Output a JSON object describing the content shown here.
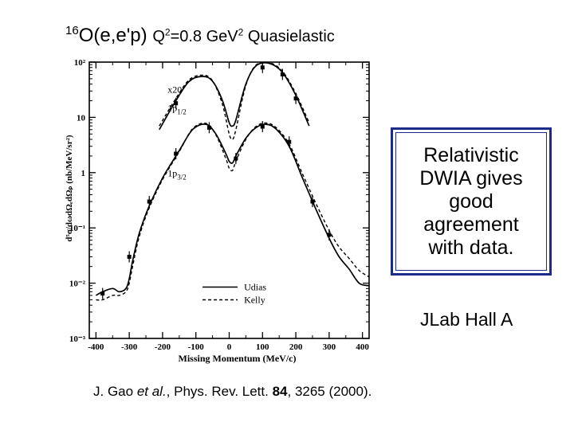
{
  "title": {
    "nucleus_mass": "16",
    "nucleus": "O(e,e'p)",
    "q_label": "Q",
    "q_exp": "2",
    "q_value": "=0.8 GeV",
    "q_unit_exp": "2",
    "q_suffix": " Quasielastic"
  },
  "callout": {
    "text": "Relativistic DWIA gives good agreement with data."
  },
  "lab": "JLab Hall A",
  "reference": {
    "authors": "J. Gao ",
    "etal": "et al.",
    "journal": ", Phys. Rev. Lett. ",
    "volume": "84",
    "pages": ", 3265 (2000)."
  },
  "chart_data": {
    "type": "line",
    "title": "",
    "xlabel": "Missing Momentum (MeV/c)",
    "ylabel": "d⁵σ/dωdΩₑdΩₚ (nb/MeV/sr²)",
    "xlim": [
      -420,
      420
    ],
    "ylim": [
      0.001,
      100
    ],
    "yscale": "log",
    "x_ticks": [
      "-400",
      "-300",
      "-200",
      "-100",
      "0",
      "100",
      "200",
      "300",
      "400"
    ],
    "y_ticks": [
      "10⁻³",
      "10⁻²",
      "10⁻¹",
      "1",
      "10",
      "10²"
    ],
    "y_tick_values": [
      0.001,
      0.01,
      0.1,
      1,
      10,
      100
    ],
    "legend": {
      "position": "bottom-right",
      "entries": [
        {
          "name": "Udias",
          "style": "solid"
        },
        {
          "name": "Kelly",
          "style": "dashed"
        }
      ]
    },
    "annotations": [
      {
        "text": "x20",
        "x": -185,
        "y": 28
      },
      {
        "text": "1p1/2",
        "x": -185,
        "y": 13
      },
      {
        "text": "1p3/2",
        "x": -185,
        "y": 0.85
      }
    ],
    "series": [
      {
        "name": "1p1/2 x20 Udias",
        "style": "solid",
        "x": [
          -210,
          -160,
          -120,
          -80,
          -50,
          -20,
          0,
          10,
          20,
          50,
          80,
          120,
          160,
          200,
          240
        ],
        "y": [
          6,
          20,
          45,
          55,
          45,
          20,
          8,
          7,
          9,
          40,
          85,
          95,
          65,
          25,
          7
        ]
      },
      {
        "name": "1p1/2 x20 Kelly",
        "style": "dashed",
        "x": [
          -210,
          -160,
          -120,
          -80,
          -50,
          -20,
          0,
          10,
          20,
          50,
          80,
          120,
          160,
          200,
          240
        ],
        "y": [
          7,
          22,
          48,
          58,
          46,
          17,
          5,
          4,
          6,
          38,
          88,
          98,
          68,
          27,
          8
        ]
      },
      {
        "name": "1p3/2 Udias",
        "style": "solid",
        "x": [
          -400,
          -380,
          -350,
          -330,
          -310,
          -300,
          -290,
          -270,
          -240,
          -200,
          -150,
          -110,
          -70,
          -40,
          -10,
          0,
          10,
          20,
          50,
          80,
          110,
          140,
          180,
          220,
          260,
          300,
          330,
          360,
          390,
          420
        ],
        "y": [
          0.006,
          0.007,
          0.008,
          0.007,
          0.008,
          0.012,
          0.025,
          0.08,
          0.25,
          0.8,
          2.5,
          6,
          7.5,
          5,
          2.2,
          1.6,
          1.5,
          2,
          4.2,
          6.5,
          7.5,
          6.2,
          3,
          0.8,
          0.22,
          0.065,
          0.03,
          0.018,
          0.01,
          0.009
        ]
      },
      {
        "name": "1p3/2 Kelly",
        "style": "dashed",
        "x": [
          -400,
          -380,
          -350,
          -330,
          -310,
          -300,
          -290,
          -270,
          -240,
          -200,
          -150,
          -110,
          -70,
          -40,
          -10,
          0,
          10,
          20,
          50,
          80,
          110,
          140,
          180,
          220,
          260,
          300,
          330,
          360,
          390,
          420
        ],
        "y": [
          0.005,
          0.005,
          0.006,
          0.006,
          0.007,
          0.01,
          0.02,
          0.07,
          0.23,
          0.75,
          2.4,
          6.2,
          7.8,
          4.8,
          1.8,
          1.2,
          1.1,
          1.6,
          4,
          6.8,
          7.9,
          6.6,
          3.3,
          0.95,
          0.28,
          0.09,
          0.045,
          0.028,
          0.017,
          0.013
        ]
      },
      {
        "name": "1p1/2 x20 data",
        "style": "points",
        "x": [
          -160,
          100,
          160,
          200
        ],
        "y": [
          18,
          80,
          60,
          22
        ]
      },
      {
        "name": "1p3/2 data",
        "style": "points",
        "x": [
          -380,
          -300,
          -240,
          -160,
          -60,
          20,
          100,
          180,
          250,
          300
        ],
        "y": [
          0.0065,
          0.03,
          0.3,
          2.2,
          6.5,
          1.8,
          6.8,
          3.6,
          0.3,
          0.075
        ]
      }
    ]
  }
}
